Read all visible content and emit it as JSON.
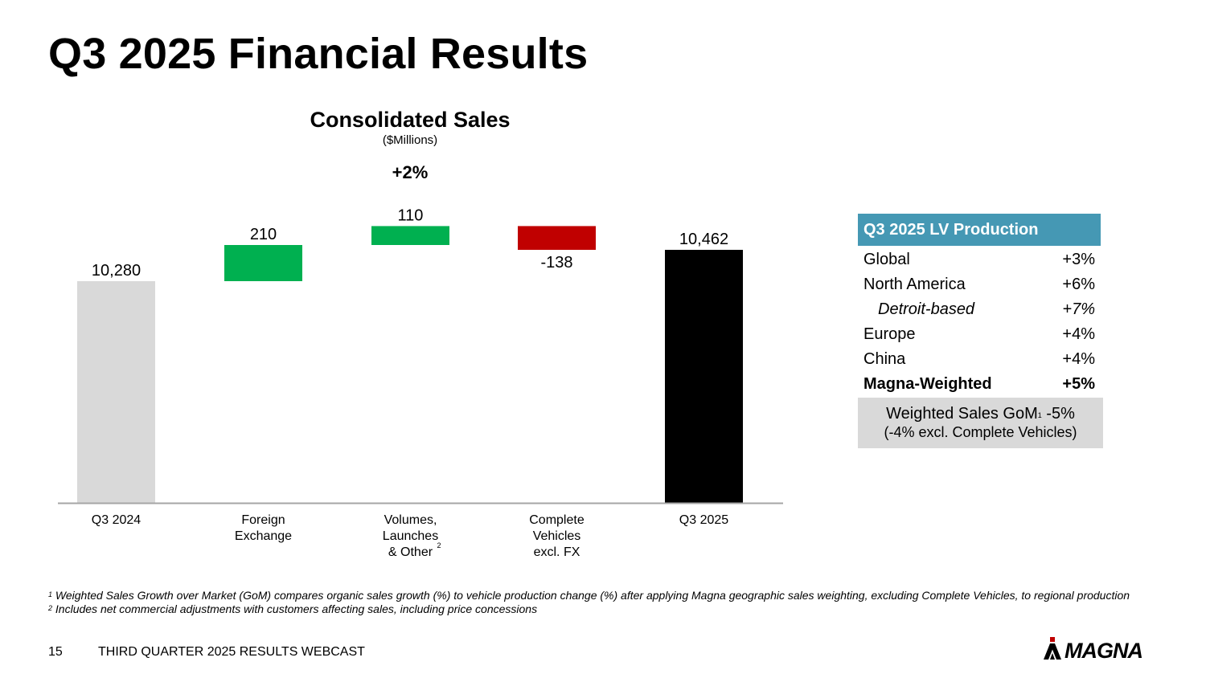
{
  "page": {
    "title": "Q3 2025 Financial Results",
    "page_number": "15",
    "footer_text": "THIRD QUARTER 2025 RESULTS WEBCAST",
    "logo_text": "MAGNA"
  },
  "chart_data": {
    "type": "waterfall",
    "title": "Consolidated Sales",
    "subtitle": "($Millions)",
    "change_label": "+2%",
    "categories": [
      {
        "label_lines": [
          "Q3 2024"
        ],
        "sup": ""
      },
      {
        "label_lines": [
          "Foreign",
          "Exchange"
        ],
        "sup": ""
      },
      {
        "label_lines": [
          "Volumes,",
          "Launches",
          "& Other"
        ],
        "sup": "2"
      },
      {
        "label_lines": [
          "Complete",
          "Vehicles",
          "excl. FX"
        ],
        "sup": ""
      },
      {
        "label_lines": [
          "Q3 2025"
        ],
        "sup": ""
      }
    ],
    "bars": [
      {
        "kind": "total",
        "value": 10280,
        "label": "10,280",
        "color": "#D9D9D9"
      },
      {
        "kind": "delta",
        "value": 210,
        "label": "210",
        "color": "#00B050"
      },
      {
        "kind": "delta",
        "value": 110,
        "label": "110",
        "color": "#00B050"
      },
      {
        "kind": "delta",
        "value": -138,
        "label": "-138",
        "color": "#C00000"
      },
      {
        "kind": "total",
        "value": 10462,
        "label": "10,462",
        "color": "#000000"
      }
    ]
  },
  "production_table": {
    "header": "Q3 2025 LV Production",
    "header_color": "#4598B4",
    "rows": [
      {
        "label": "Global",
        "value": "+3%",
        "style": "normal"
      },
      {
        "label": "North America",
        "value": "+6%",
        "style": "normal"
      },
      {
        "label": "Detroit-based",
        "value": "+7%",
        "style": "italic"
      },
      {
        "label": "Europe",
        "value": "+4%",
        "style": "normal"
      },
      {
        "label": "China",
        "value": "+4%",
        "style": "normal"
      },
      {
        "label": "Magna-Weighted",
        "value": "+5%",
        "style": "bold"
      }
    ],
    "gom": {
      "label": "Weighted Sales GoM",
      "sup": "1",
      "value": " -5%",
      "note": "(-4% excl. Complete Vehicles)"
    }
  },
  "footnotes": [
    {
      "num": "1",
      "text": " Weighted Sales Growth over Market (GoM) compares organic sales growth (%) to vehicle production change (%) after applying Magna geographic sales weighting, excluding Complete Vehicles, to regional production"
    },
    {
      "num": "2",
      "text": " Includes net commercial adjustments with customers affecting sales, including price concessions"
    }
  ]
}
